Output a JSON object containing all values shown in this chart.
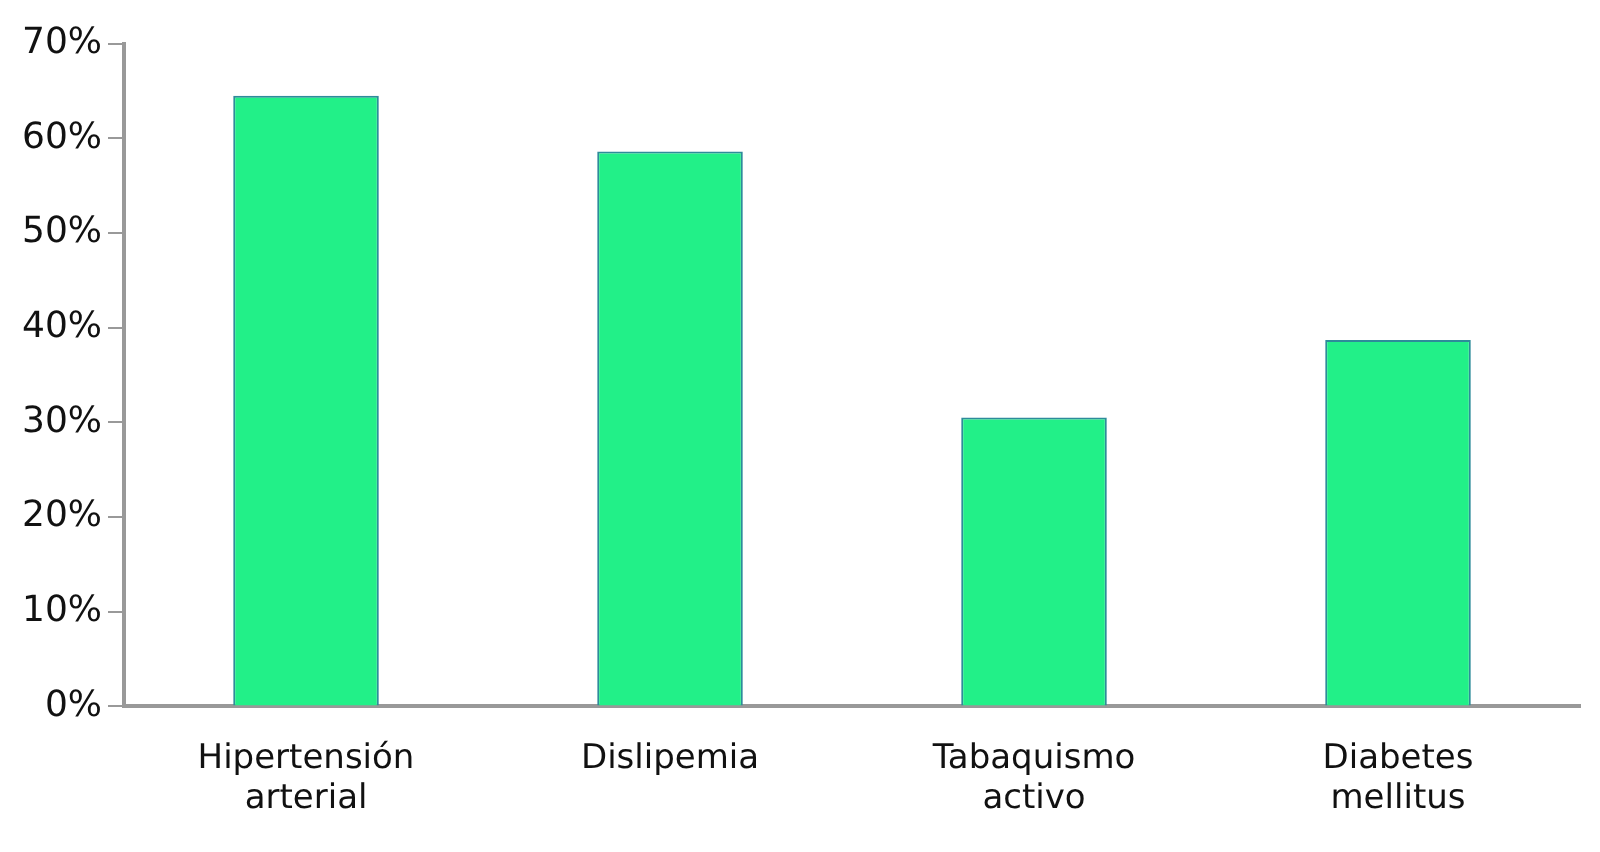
{
  "chart_data": {
    "type": "bar",
    "categories": [
      "Hipertensión arterial",
      "Dislipemia",
      "Tabaquismo activo",
      "Diabetes mellitus"
    ],
    "values": [
      64.5,
      58.6,
      30.5,
      38.7
    ],
    "color": "#22f088",
    "ylim": [
      0,
      70
    ],
    "yticks": [
      {
        "value": 0,
        "label": "0%"
      },
      {
        "value": 10,
        "label": "10%"
      },
      {
        "value": 20,
        "label": "20%"
      },
      {
        "value": 30,
        "label": "30%"
      },
      {
        "value": 40,
        "label": "40%"
      },
      {
        "value": 50,
        "label": "50%"
      },
      {
        "value": 60,
        "label": "60%"
      },
      {
        "value": 70,
        "label": "70%"
      }
    ],
    "grid": false,
    "legend": false
  }
}
